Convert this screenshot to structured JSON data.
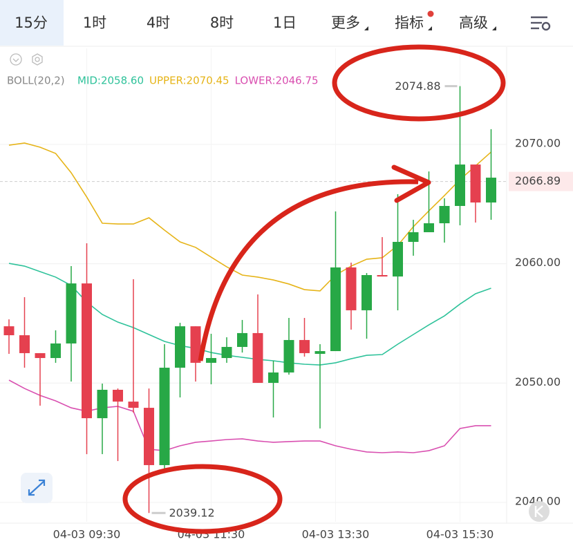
{
  "tabs": [
    "15分",
    "1时",
    "4时",
    "8时",
    "1日",
    "更多",
    "指标",
    "高级"
  ],
  "chart_data": {
    "type": "candlestick",
    "indicator": "BOLL(20,2)",
    "categories": [
      null,
      null,
      null,
      null,
      null,
      "04-03 09:30",
      null,
      null,
      null,
      null,
      null,
      null,
      null,
      "04-03 11:30",
      null,
      null,
      null,
      null,
      null,
      null,
      null,
      "04-03 13:30",
      null,
      null,
      null,
      null,
      null,
      null,
      null,
      "04-03 15:30",
      null,
      null
    ],
    "open": [
      2054.76,
      2054.01,
      2052.51,
      2052.1,
      2053.32,
      2058.35,
      2047.06,
      2049.44,
      2048.45,
      2047.93,
      2043.13,
      2051.29,
      2054.76,
      2051.7,
      2052.1,
      2053.03,
      2054.19,
      2050.02,
      2050.89,
      2053.61,
      2052.45,
      2052.68,
      2059.69,
      2056.1,
      2059.05,
      2058.93,
      2061.83,
      2062.64,
      2063.39,
      2064.84,
      2068.31,
      2065.13
    ],
    "high": [
      2055.34,
      2057.2,
      2052.51,
      2054.42,
      2059.8,
      2061.71,
      2049.96,
      2049.55,
      2058.7,
      2049.55,
      2053.26,
      2055.05,
      2054.76,
      2054.13,
      2053.84,
      2055.29,
      2057.43,
      2051.87,
      2055.46,
      2055.46,
      2053.26,
      2064.38,
      2060.09,
      2059.22,
      2062.23,
      2065.82,
      2063.68,
      2067.73,
      2065.48,
      2074.88,
      2068.31,
      2071.27
    ],
    "low": [
      2052.45,
      2051.29,
      2048.11,
      2051.7,
      2050.13,
      2044.05,
      2044.05,
      2043.47,
      2047.53,
      2039.12,
      2042.72,
      2048.8,
      2050.13,
      2049.9,
      2051.7,
      2052.56,
      2050.02,
      2047.12,
      2050.71,
      2052.22,
      2046.2,
      2052.68,
      2054.48,
      2053.72,
      2058.93,
      2056.1,
      2060.67,
      2062.64,
      2061.77,
      2063.22,
      2063.45,
      2063.68
    ],
    "close": [
      2054.01,
      2052.51,
      2052.1,
      2053.32,
      2058.35,
      2047.06,
      2049.44,
      2048.45,
      2047.93,
      2043.13,
      2051.29,
      2054.76,
      2051.7,
      2052.1,
      2053.03,
      2054.19,
      2050.02,
      2050.89,
      2053.61,
      2052.51,
      2052.68,
      2059.69,
      2056.1,
      2059.05,
      2058.93,
      2061.83,
      2062.64,
      2063.39,
      2064.84,
      2068.31,
      2065.13,
      2067.21
    ],
    "up_color": "#27a846",
    "down_color": "#e5404f",
    "series": [
      {
        "name": "MID:2058.60",
        "color": "#2ec29a",
        "values": [
          2060.03,
          2059.8,
          2059.34,
          2058.88,
          2058.18,
          2056.79,
          2055.75,
          2055.11,
          2054.65,
          2054.07,
          2053.49,
          2053.14,
          2052.91,
          2052.56,
          2052.33,
          2052.16,
          2051.99,
          2051.87,
          2051.7,
          2051.58,
          2051.52,
          2051.7,
          2052.04,
          2052.33,
          2052.39,
          2053.26,
          2054.07,
          2054.88,
          2055.63,
          2056.62,
          2057.49,
          2057.95
        ]
      },
      {
        "name": "UPPER:2070.45",
        "color": "#e6b418",
        "values": [
          2069.93,
          2070.11,
          2069.76,
          2069.24,
          2067.62,
          2065.59,
          2063.39,
          2063.33,
          2063.33,
          2063.85,
          2062.81,
          2061.83,
          2061.37,
          2060.55,
          2059.74,
          2059.05,
          2058.88,
          2058.64,
          2058.3,
          2057.83,
          2057.72,
          2059.05,
          2059.8,
          2060.38,
          2060.5,
          2061.54,
          2063.1,
          2064.43,
          2065.71,
          2067.04,
          2068.2,
          2069.36
        ]
      },
      {
        "name": "LOWER:2046.75",
        "color": "#d94fb0",
        "values": [
          2050.25,
          2049.55,
          2048.97,
          2048.51,
          2047.93,
          2047.64,
          2047.93,
          2048.05,
          2047.64,
          2044.46,
          2044.34,
          2044.75,
          2045.04,
          2045.15,
          2045.27,
          2045.33,
          2045.15,
          2045.04,
          2045.1,
          2045.15,
          2045.15,
          2044.75,
          2044.46,
          2044.23,
          2044.17,
          2044.23,
          2044.17,
          2044.34,
          2044.75,
          2046.2,
          2046.43,
          2046.43
        ]
      }
    ],
    "ylim": [
      2038.38,
      2078.04
    ],
    "yticks": [
      {
        "value": 2040,
        "label": "2040.00"
      },
      {
        "value": 2050,
        "label": "2050.00"
      },
      {
        "value": 2060,
        "label": "2060.00"
      },
      {
        "value": 2070,
        "label": "2070.00"
      }
    ],
    "grid": true,
    "last_price": 2066.89,
    "high_label": "2074.88",
    "low_label": "2039.12"
  }
}
